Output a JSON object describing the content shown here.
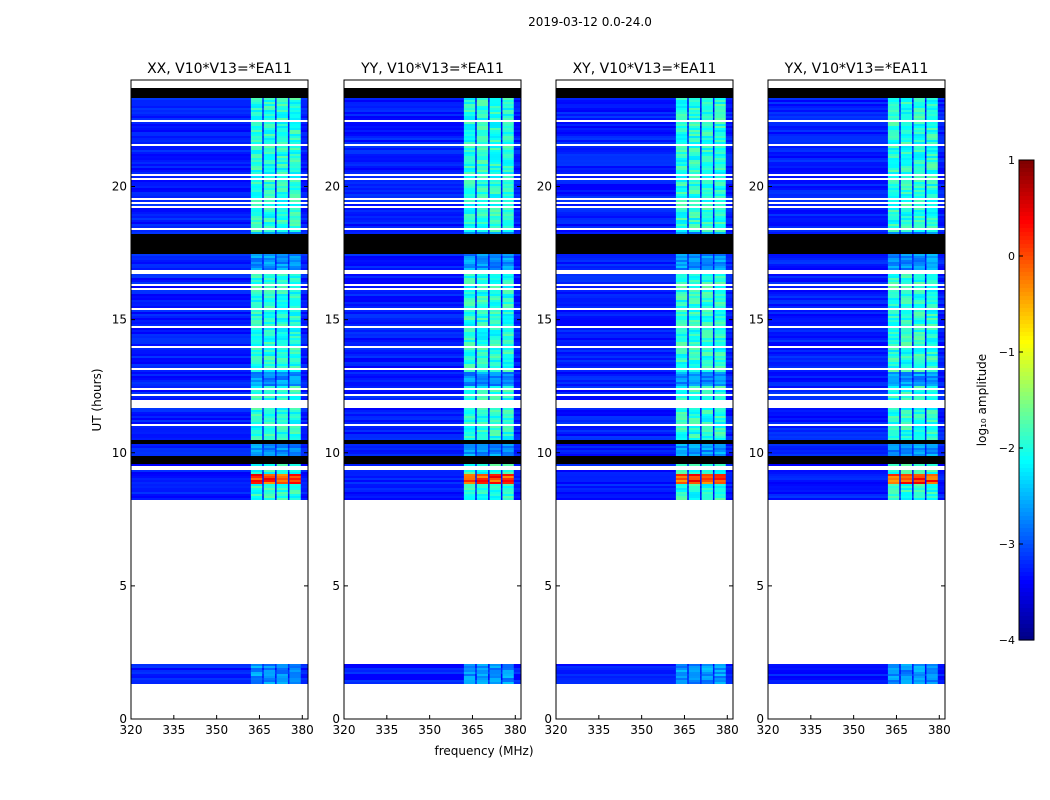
{
  "chart_data": {
    "type": "heatmap",
    "suptitle": "2019-03-12 0.0-24.0",
    "xlabel": "frequency (MHz)",
    "ylabel": "UT (hours)",
    "xlim": [
      320,
      382
    ],
    "ylim": [
      0,
      24
    ],
    "xticks": [
      320,
      335,
      350,
      365,
      380
    ],
    "yticks": [
      0,
      5,
      10,
      15,
      20
    ],
    "panels": [
      {
        "title": "XX, V10*V13=*EA11"
      },
      {
        "title": "YY, V10*V13=*EA11"
      },
      {
        "title": "XY, V10*V13=*EA11"
      },
      {
        "title": "YX, V10*V13=*EA11"
      }
    ],
    "colorbar": {
      "label": "log₁₀ amplitude",
      "min": -4,
      "max": 1,
      "ticks": [
        "1",
        "0",
        "−1",
        "−2",
        "−3",
        "−4"
      ],
      "colormap": "jet"
    },
    "data_time_ranges_hours": [
      [
        1.3,
        2.1
      ],
      [
        8.2,
        9.6
      ],
      [
        9.9,
        10.3
      ],
      [
        10.5,
        16.7
      ],
      [
        16.9,
        17.5
      ],
      [
        18.2,
        23.3
      ]
    ],
    "empty_row_bands_hours": [
      [
        10.3,
        10.5
      ],
      [
        9.6,
        9.9
      ],
      [
        17.5,
        18.2
      ],
      [
        23.3,
        23.7
      ]
    ],
    "bright_rfi_channel_range_mhz": [
      362,
      380
    ],
    "peak_event_hours": [
      8.8,
      9.2
    ],
    "colors": {
      "background": "#ffffff",
      "low": "#0000b4",
      "mid": "#00ffff",
      "high": "#ff0000",
      "blank": "#000000"
    }
  }
}
